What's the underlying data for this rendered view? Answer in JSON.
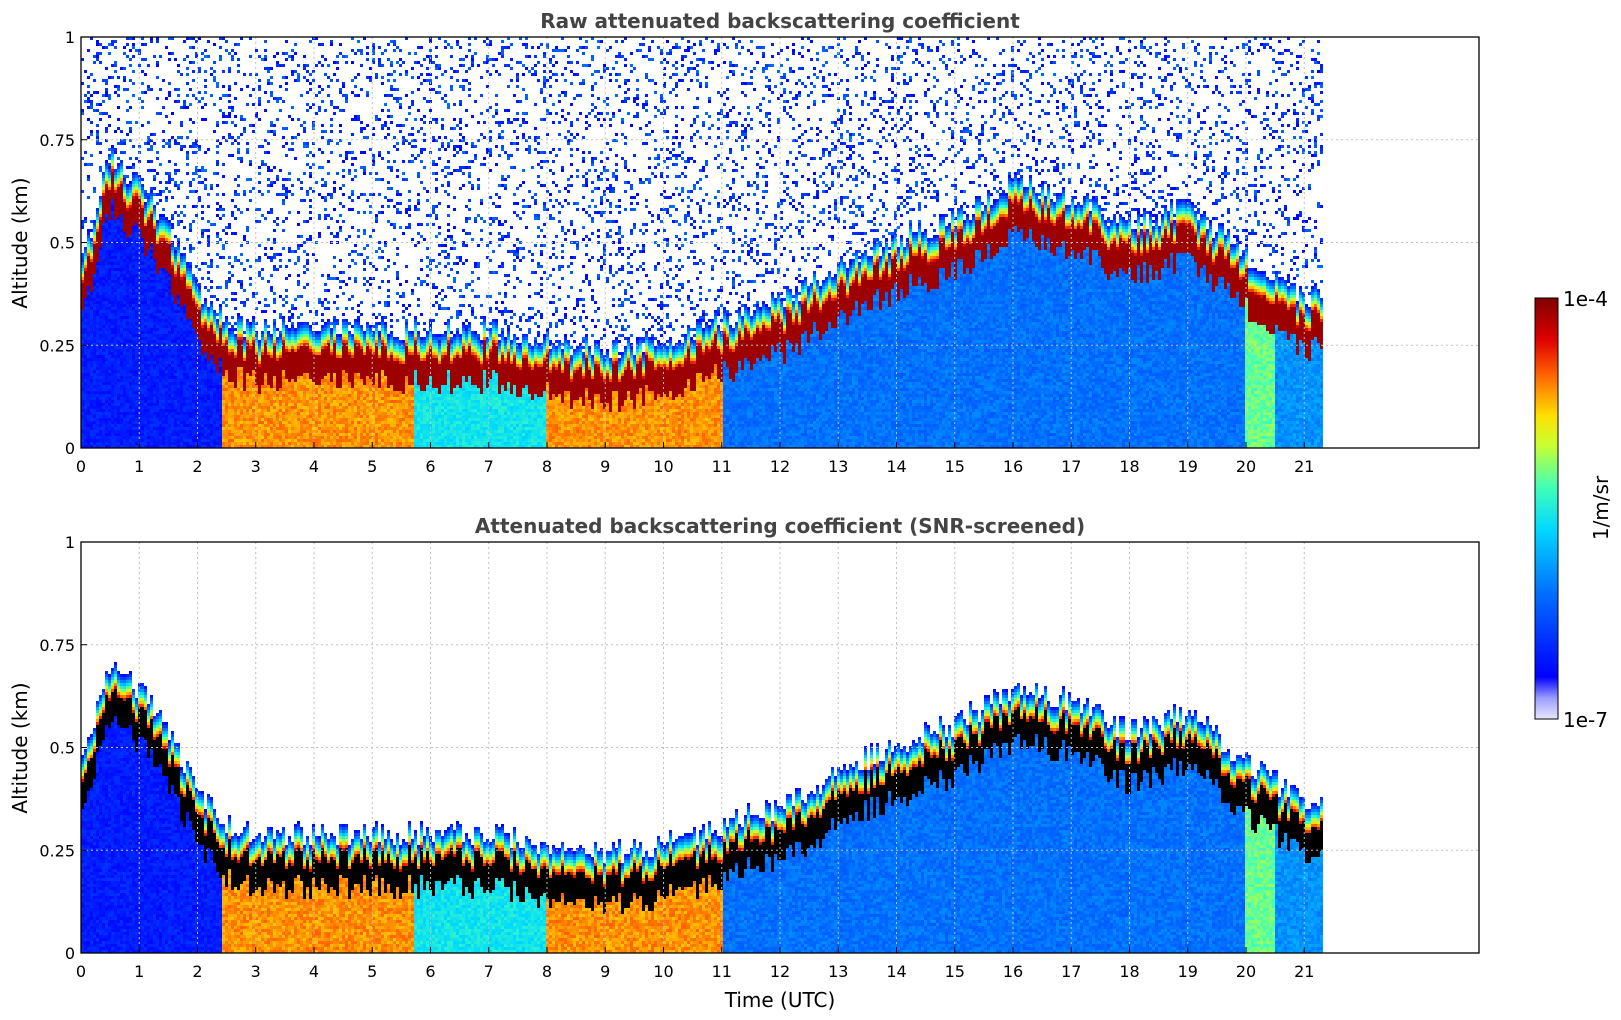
{
  "chart_data": [
    {
      "type": "heatmap",
      "title": "Raw attenuated backscattering coefficient",
      "xlabel": "",
      "ylabel": "Altitude (km)",
      "xlim": [
        0,
        24
      ],
      "ylim": [
        0,
        1
      ],
      "x_ticks": [
        "0",
        "1",
        "2",
        "3",
        "4",
        "5",
        "6",
        "7",
        "8",
        "9",
        "10",
        "11",
        "12",
        "13",
        "14",
        "15",
        "16",
        "17",
        "18",
        "19",
        "20",
        "21"
      ],
      "y_ticks": [
        "0",
        "0.25",
        "0.5",
        "0.75",
        "1"
      ],
      "grid": true,
      "data_end_hour": 21.3,
      "peak_layer_altitude_km": [
        [
          0,
          0.35
        ],
        [
          0.5,
          0.62
        ],
        [
          1,
          0.55
        ],
        [
          1.5,
          0.45
        ],
        [
          2,
          0.3
        ],
        [
          2.5,
          0.22
        ],
        [
          3,
          0.2
        ],
        [
          4,
          0.2
        ],
        [
          5,
          0.2
        ],
        [
          6,
          0.2
        ],
        [
          7,
          0.2
        ],
        [
          8,
          0.17
        ],
        [
          9,
          0.15
        ],
        [
          10,
          0.18
        ],
        [
          11,
          0.22
        ],
        [
          12,
          0.27
        ],
        [
          13,
          0.35
        ],
        [
          14,
          0.42
        ],
        [
          15,
          0.47
        ],
        [
          16,
          0.55
        ],
        [
          17,
          0.53
        ],
        [
          18,
          0.45
        ],
        [
          19,
          0.5
        ],
        [
          20,
          0.38
        ],
        [
          21,
          0.28
        ],
        [
          21.3,
          0.28
        ]
      ],
      "ground_level_regimes": [
        {
          "from": 0,
          "to": 2.4,
          "level": 0.15
        },
        {
          "from": 2.4,
          "to": 5.7,
          "level": 0.78
        },
        {
          "from": 5.7,
          "to": 8.0,
          "level": 0.48
        },
        {
          "from": 8.0,
          "to": 11.0,
          "level": 0.78
        },
        {
          "from": 11.0,
          "to": 20.0,
          "level": 0.3
        },
        {
          "from": 20.0,
          "to": 20.5,
          "level": 0.58
        },
        {
          "from": 20.5,
          "to": 21.3,
          "level": 0.35
        }
      ]
    },
    {
      "type": "heatmap",
      "title": "Attenuated backscattering coefficient (SNR-screened)",
      "xlabel": "Time (UTC)",
      "ylabel": "Altitude (km)",
      "xlim": [
        0,
        24
      ],
      "ylim": [
        0,
        1
      ],
      "x_ticks": [
        "0",
        "1",
        "2",
        "3",
        "4",
        "5",
        "6",
        "7",
        "8",
        "9",
        "10",
        "11",
        "12",
        "13",
        "14",
        "15",
        "16",
        "17",
        "18",
        "19",
        "20",
        "21"
      ],
      "y_ticks": [
        "0",
        "0.25",
        "0.5",
        "0.75",
        "1"
      ],
      "grid": true,
      "data_end_hour": 21.3
    }
  ],
  "colorbar": {
    "label": "1/m/sr",
    "max_label": "1e-4",
    "min_label": "1e-7",
    "scale": "log",
    "colormap": "jet"
  }
}
